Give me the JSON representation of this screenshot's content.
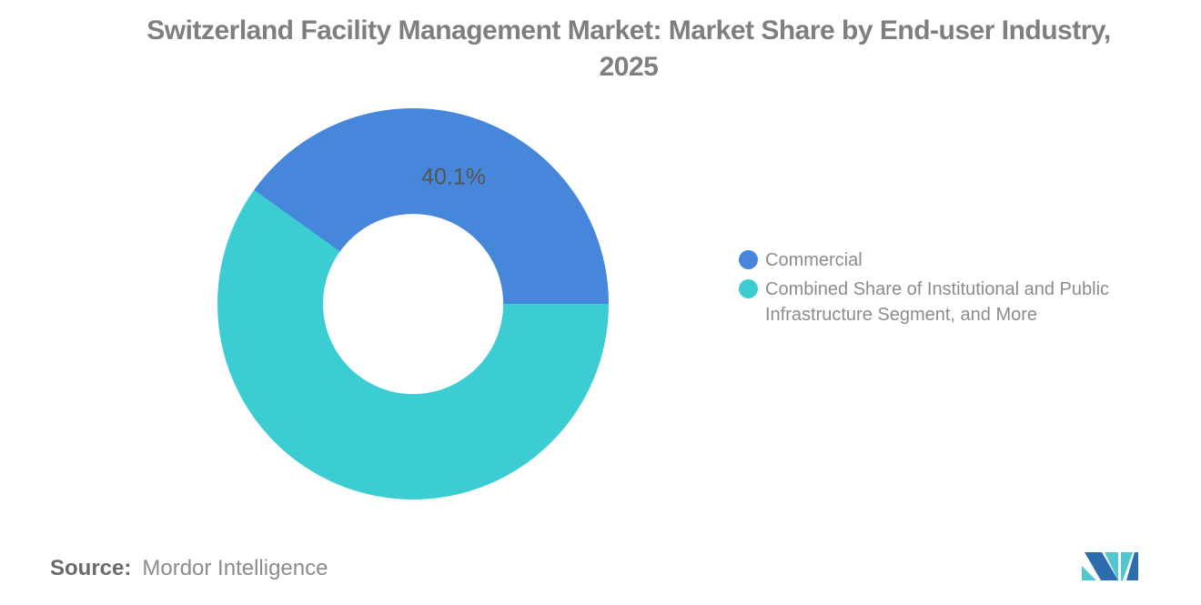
{
  "header": {
    "title_line1": "Switzerland Facility Management Market: Market Share by End-user Industry,",
    "title_line2": "2025"
  },
  "chart_data": {
    "type": "pie",
    "subtype": "donut",
    "title": "Switzerland Facility Management Market: Market Share by End-user Industry, 2025",
    "unit": "percent market share",
    "series": [
      {
        "name": "Commercial",
        "value": 40.1,
        "color": "#4687DB",
        "data_label": "40.1%"
      },
      {
        "name": "Combined Share of Institutional and Public Infrastructure Segment, and More",
        "value": 59.9,
        "color": "#3CCDD3",
        "data_label": ""
      }
    ],
    "layout": {
      "first_slice_start": "right",
      "direction": "counterclockwise",
      "inner_radius_ratio": 0.46,
      "label_radius_ratio": 0.677,
      "legend_position": "right-middle",
      "grid": false
    }
  },
  "legend": {
    "items": [
      {
        "label": "Commercial",
        "color": "#4687DB"
      },
      {
        "label": "Combined Share of Institutional and Public Infrastructure Segment, and More",
        "color": "#3CCDD3"
      }
    ]
  },
  "footer": {
    "source_label": "Source:",
    "source_value": "Mordor Intelligence"
  },
  "branding": {
    "logo_name": "mordor-intelligence-mi-logo"
  },
  "colors": {
    "background": "#FFFFFF",
    "chart_blue": "#4687DB",
    "chart_teal": "#3CCDD3",
    "title_text": "#7F7F7F",
    "legend_text": "#8C8C8C",
    "slice_label_text": "#545454",
    "source_label_text": "#6A6A6A",
    "source_value_text": "#8C8C8C",
    "logo_blue": "#2D6DAF",
    "logo_teal": "#53C6CE"
  }
}
